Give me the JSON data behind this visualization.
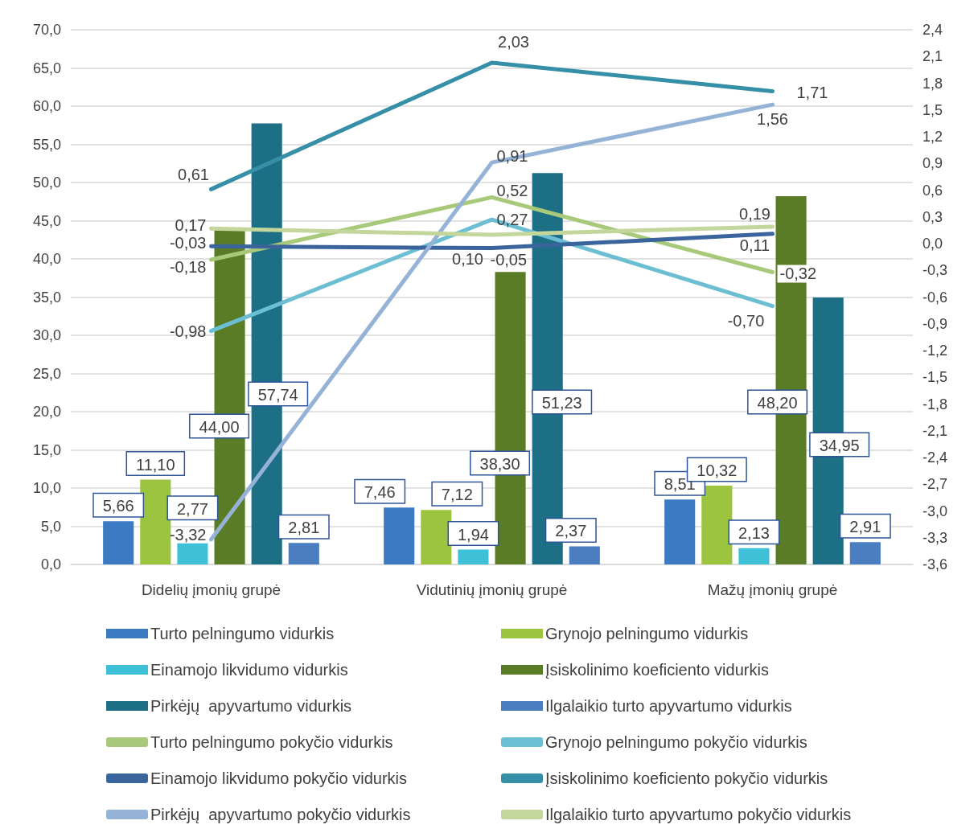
{
  "chart_data": {
    "type": "bar",
    "categories": [
      "Didelių įmonių grupė",
      "Vidutinių įmonių grupė",
      "Mažų įmonių grupė"
    ],
    "ylim": [
      0,
      70
    ],
    "yticks": [
      {
        "value": 0,
        "label": "0,0"
      },
      {
        "value": 5,
        "label": "5,0"
      },
      {
        "value": 10,
        "label": "10,0"
      },
      {
        "value": 15,
        "label": "15,0"
      },
      {
        "value": 20,
        "label": "20,0"
      },
      {
        "value": 25,
        "label": "25,0"
      },
      {
        "value": 30,
        "label": "30,0"
      },
      {
        "value": 35,
        "label": "35,0"
      },
      {
        "value": 40,
        "label": "40,0"
      },
      {
        "value": 45,
        "label": "45,0"
      },
      {
        "value": 50,
        "label": "50,0"
      },
      {
        "value": 55,
        "label": "55,0"
      },
      {
        "value": 60,
        "label": "60,0"
      },
      {
        "value": 65,
        "label": "65,0"
      },
      {
        "value": 70,
        "label": "70,0"
      }
    ],
    "y2lim": [
      -3.6,
      2.4
    ],
    "y2ticks": [
      {
        "value": -3.6,
        "label": "-3,6"
      },
      {
        "value": -3.3,
        "label": "-3,3"
      },
      {
        "value": -3.0,
        "label": "-3,0"
      },
      {
        "value": -2.7,
        "label": "-2,7"
      },
      {
        "value": -2.4,
        "label": "-2,4"
      },
      {
        "value": -2.1,
        "label": "-2,1"
      },
      {
        "value": -1.8,
        "label": "-1,8"
      },
      {
        "value": -1.5,
        "label": "-1,5"
      },
      {
        "value": -1.2,
        "label": "-1,2"
      },
      {
        "value": -0.9,
        "label": "-0,9"
      },
      {
        "value": -0.6,
        "label": "-0,6"
      },
      {
        "value": -0.3,
        "label": "-0,3"
      },
      {
        "value": 0,
        "label": "0,0"
      },
      {
        "value": 0.3,
        "label": "0,3"
      },
      {
        "value": 0.6,
        "label": "0,6"
      },
      {
        "value": 0.9,
        "label": "0,9"
      },
      {
        "value": 1.2,
        "label": "1,2"
      },
      {
        "value": 1.5,
        "label": "1,5"
      },
      {
        "value": 1.8,
        "label": "1,8"
      },
      {
        "value": 2.1,
        "label": "2,1"
      },
      {
        "value": 2.4,
        "label": "2,4"
      }
    ],
    "grid": "y",
    "legend": "bottom",
    "marker": "none",
    "line_style": "solid",
    "series": [
      {
        "name": "Turto pelningumo vidurkis",
        "color": "#3c7bc4",
        "values": [
          5.66,
          7.46,
          8.51
        ],
        "value_labels": [
          "5,66",
          "7,46",
          "8,51"
        ]
      },
      {
        "name": "Grynojo pelningumo vidurkis",
        "color": "#9dc43f",
        "values": [
          11.1,
          7.12,
          10.32
        ],
        "value_labels": [
          "11,10",
          "7,12",
          "10,32"
        ]
      },
      {
        "name": "Einamojo likvidumo vidurkis",
        "color": "#3ec0d6",
        "values": [
          2.77,
          1.94,
          2.13
        ],
        "value_labels": [
          "2,77",
          "1,94",
          "2,13"
        ]
      },
      {
        "name": "Įsiskolinimo koeficiento vidurkis",
        "color": "#5b7c27",
        "values": [
          44.0,
          38.3,
          48.2
        ],
        "value_labels": [
          "44,00",
          "38,30",
          "48,20"
        ]
      },
      {
        "name": "Pirkėjų  apyvartumo vidurkis",
        "color": "#1d6f86",
        "values": [
          57.74,
          51.23,
          34.95
        ],
        "value_labels": [
          "57,74",
          "51,23",
          "34,95"
        ]
      },
      {
        "name": "Ilgalaikio turto apyvartumo vidurkis",
        "color": "#4a7ec0",
        "values": [
          2.81,
          2.37,
          2.91
        ],
        "value_labels": [
          "2,81",
          "2,37",
          "2,91"
        ]
      },
      {
        "type": "line",
        "axis": "y2",
        "name": "Turto pelningumo pokyčio vidurkis",
        "color": "#a9c97a",
        "values": [
          -0.18,
          0.52,
          -0.32
        ],
        "value_labels": [
          "-0,18",
          "0,52",
          "-0,32"
        ]
      },
      {
        "type": "line",
        "axis": "y2",
        "name": "Grynojo pelningumo pokyčio vidurkis",
        "color": "#6cbfd2",
        "values": [
          -0.98,
          0.27,
          -0.7
        ],
        "value_labels": [
          "-0,98",
          "0,27",
          "-0,70"
        ]
      },
      {
        "type": "line",
        "axis": "y2",
        "name": "Einamojo likvidumo pokyčio vidurkis",
        "color": "#3a659c",
        "values": [
          -0.03,
          -0.05,
          0.11
        ],
        "value_labels": [
          "-0,03",
          "-0,05",
          "0,11"
        ]
      },
      {
        "type": "line",
        "axis": "y2",
        "name": "Įsiskolinimo koeficiento pokyčio vidurkis",
        "color": "#358fa6",
        "values": [
          0.61,
          2.03,
          1.71
        ],
        "value_labels": [
          "0,61",
          "2,03",
          "1,71"
        ]
      },
      {
        "type": "line",
        "axis": "y2",
        "name": "Pirkėjų  apyvartumo pokyčio vidurkis",
        "color": "#95b3d7",
        "values": [
          -3.32,
          0.91,
          1.56
        ],
        "value_labels": [
          "-3,32",
          "0,91",
          "1,56"
        ]
      },
      {
        "type": "line",
        "axis": "y2",
        "name": "Ilgalaikio turto apyvartumo pokyčio vidurkis",
        "color": "#c3d69b",
        "values": [
          0.17,
          0.1,
          0.19
        ],
        "value_labels": [
          "0,17",
          "0,10",
          "0,19"
        ]
      }
    ]
  }
}
